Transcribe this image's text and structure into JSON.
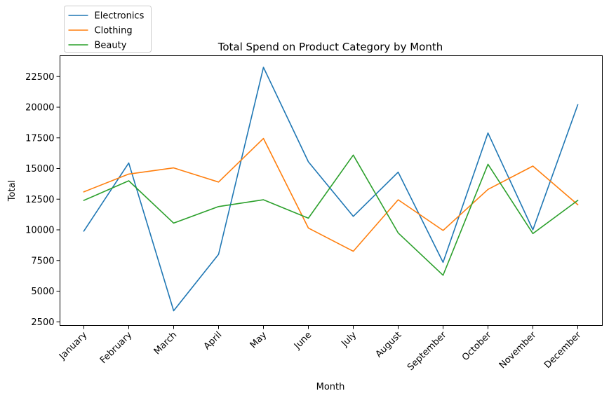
{
  "chart_data": {
    "type": "line",
    "title": "Total Spend on Product Category by Month",
    "xlabel": "Month",
    "ylabel": "Total",
    "categories": [
      "January",
      "February",
      "March",
      "April",
      "May",
      "June",
      "July",
      "August",
      "September",
      "October",
      "November",
      "December"
    ],
    "yticks": [
      2500,
      5000,
      7500,
      10000,
      12500,
      15000,
      17500,
      20000,
      22500
    ],
    "ylim": [
      2200,
      24200
    ],
    "grid": false,
    "legend_position": "upper-left, outside above the axes",
    "series": [
      {
        "name": "Electronics",
        "color": "#1f77b4",
        "values": [
          9900,
          15450,
          3400,
          8000,
          23250,
          15550,
          11100,
          14700,
          7350,
          17900,
          10000,
          20200
        ]
      },
      {
        "name": "Clothing",
        "color": "#ff7f0e",
        "values": [
          13100,
          14550,
          15050,
          13900,
          17450,
          10150,
          8250,
          12450,
          9950,
          13300,
          15200,
          12050
        ]
      },
      {
        "name": "Beauty",
        "color": "#2ca02c",
        "values": [
          12400,
          14000,
          10550,
          11900,
          12450,
          10950,
          16100,
          9750,
          6300,
          15350,
          9700,
          12400
        ]
      }
    ]
  }
}
